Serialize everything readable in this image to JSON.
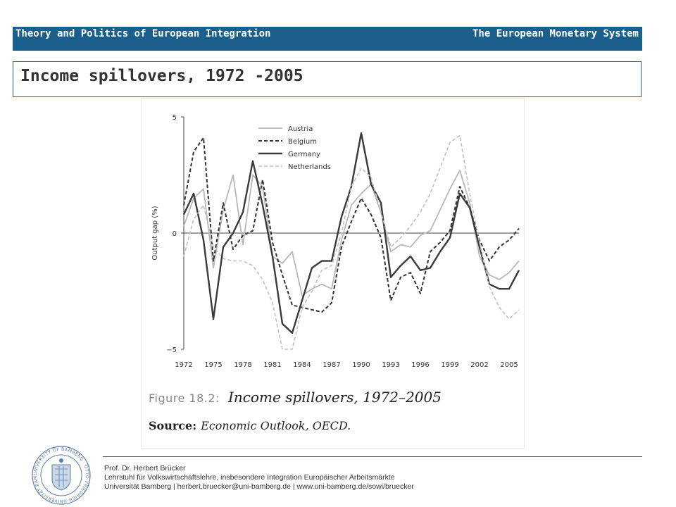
{
  "header": {
    "left_title": "Theory and Politics of European Integration",
    "right_title": "The European Monetary System"
  },
  "slide_title": "Income spillovers, 1972 -2005",
  "figure": {
    "caption_number": "Figure 18.2:",
    "caption_title": "Income spillovers, 1972–2005",
    "source_label": "Source:",
    "source_text": "Economic Outlook, OECD."
  },
  "chart_data": {
    "type": "line",
    "title": "",
    "xlabel": "",
    "ylabel": "Output gap (%)",
    "xlim": [
      1972,
      2006
    ],
    "ylim": [
      -5,
      5
    ],
    "x_ticks": [
      "1972",
      "1975",
      "1978",
      "1981",
      "1984",
      "1987",
      "1990",
      "1993",
      "1996",
      "1999",
      "2002",
      "2005"
    ],
    "y_ticks": [
      "5",
      "0",
      "−5"
    ],
    "zero_line": true,
    "grid": false,
    "legend_position": "top-center",
    "x": [
      1972,
      1973,
      1974,
      1975,
      1976,
      1977,
      1978,
      1979,
      1980,
      1981,
      1982,
      1983,
      1984,
      1985,
      1986,
      1987,
      1988,
      1989,
      1990,
      1991,
      1992,
      1993,
      1994,
      1995,
      1996,
      1997,
      1998,
      1999,
      2000,
      2001,
      2002,
      2003,
      2004,
      2005,
      2006
    ],
    "series": [
      {
        "name": "Austria",
        "style": "solid-light",
        "color": "#bbbbbb",
        "values": [
          0.3,
          1.5,
          1.9,
          -1.5,
          1.0,
          2.5,
          -0.5,
          2.5,
          2.0,
          -1.0,
          -1.3,
          -0.8,
          -2.7,
          -2.4,
          -2.2,
          -2.4,
          -0.3,
          1.2,
          1.7,
          2.1,
          0.9,
          -0.8,
          -0.5,
          -0.6,
          -0.1,
          0.1,
          1.0,
          1.9,
          2.7,
          1.3,
          -1.0,
          -1.8,
          -2.0,
          -1.7,
          -1.2
        ]
      },
      {
        "name": "Belgium",
        "style": "dashed",
        "color": "#333333",
        "values": [
          1.2,
          3.5,
          4.1,
          -1.2,
          1.3,
          -0.7,
          -0.1,
          0.1,
          2.3,
          -0.4,
          -1.8,
          -3.1,
          -3.2,
          -3.3,
          -3.4,
          -3.0,
          -0.6,
          0.5,
          1.5,
          0.8,
          -0.2,
          -2.9,
          -1.9,
          -1.7,
          -2.6,
          -0.8,
          -0.4,
          0.1,
          2.0,
          1.1,
          -0.3,
          -1.2,
          -0.6,
          -0.3,
          0.2
        ]
      },
      {
        "name": "Germany",
        "style": "solid-dark",
        "color": "#333333",
        "values": [
          0.8,
          1.7,
          -0.3,
          -3.7,
          -0.6,
          0.0,
          0.9,
          3.1,
          1.2,
          -1.0,
          -3.9,
          -4.3,
          -2.9,
          -1.5,
          -1.2,
          -1.2,
          0.7,
          2.0,
          4.3,
          2.1,
          1.3,
          -1.9,
          -1.4,
          -1.0,
          -1.6,
          -1.5,
          -0.8,
          -0.2,
          1.7,
          1.1,
          -0.6,
          -2.2,
          -2.4,
          -2.4,
          -1.6
        ]
      },
      {
        "name": "Netherlands",
        "style": "dashed-light",
        "color": "#bbbbbb",
        "values": [
          -1.0,
          0.6,
          1.2,
          -0.6,
          -1.1,
          -1.2,
          -1.2,
          -1.4,
          -2.0,
          -3.0,
          -5.0,
          -5.0,
          -3.2,
          -2.5,
          -1.6,
          -1.4,
          0.0,
          2.0,
          2.8,
          2.4,
          0.9,
          -0.6,
          -0.2,
          0.3,
          0.9,
          1.7,
          2.8,
          3.9,
          4.2,
          1.7,
          -0.4,
          -2.3,
          -3.2,
          -3.7,
          -3.3
        ]
      }
    ]
  },
  "footer": {
    "line1": "Prof. Dr. Herbert Brücker",
    "line2": "Lehrstuhl für Volkswirtschaftslehre, insbesondere Integration Europäischer Arbeitsmärkte",
    "line3": "Universität Bamberg | herbert.bruecker@uni-bamberg.de | www.uni-bamberg.de/sowi/bruecker"
  },
  "logo": {
    "text": "UNIVERSITY OF BAMBERG · OTTO-FRIEDRICH-UNIVERSITÄT BAMBERG",
    "color": "#5b7fa6"
  }
}
